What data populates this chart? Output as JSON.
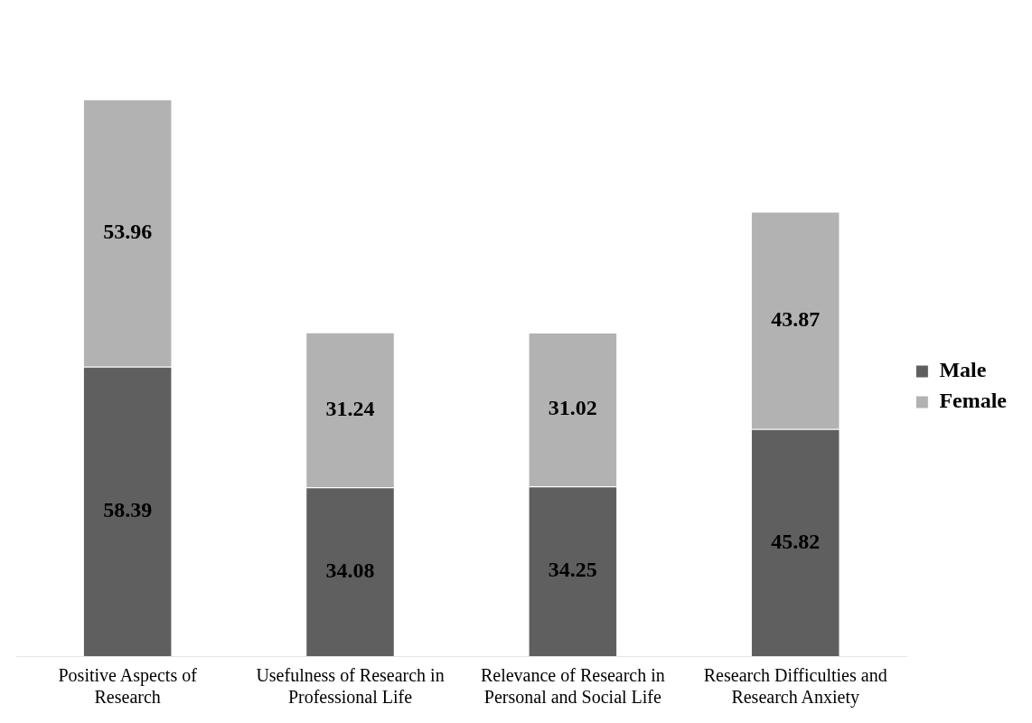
{
  "chart_data": {
    "type": "bar",
    "stacked": true,
    "data_labels": true,
    "legend": "right",
    "grid": false,
    "categories": [
      "Positive Aspects of Research",
      "Usefulness of Research in Professional Life",
      "Relevance of Research in Personal and Social Life",
      "Research Difficulties and Research Anxiety"
    ],
    "series": [
      {
        "name": "Male",
        "color": "#5f5f5f",
        "values": [
          58.39,
          34.08,
          34.25,
          45.82
        ]
      },
      {
        "name": "Female",
        "color": "#b2b2b2",
        "values": [
          53.96,
          31.24,
          31.02,
          43.87
        ]
      }
    ]
  }
}
